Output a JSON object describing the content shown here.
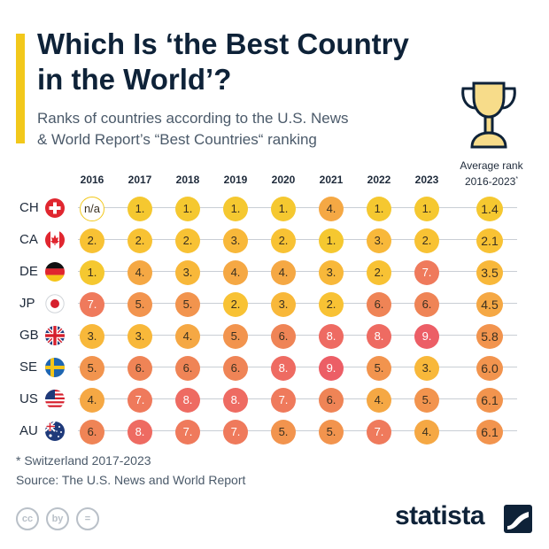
{
  "title_line1": "Which Is ‘the Best Country",
  "title_line2": "in the World’?",
  "subtitle_line1": "Ranks of countries according to the U.S. News",
  "subtitle_line2": "& World Report’s “Best Countries“ ranking",
  "avg_header_line1": "Average rank",
  "avg_header_line2": "2016-2023",
  "avg_header_mark": "*",
  "footnote": "* Switzerland 2017-2023",
  "source": "Source: The U.S. News and World Report",
  "brand": "statista",
  "cc_icons": [
    "cc",
    "by",
    "="
  ],
  "colors": {
    "accent": "#f2c81b",
    "rank_1": "#f5c830",
    "rank_2": "#f8c234",
    "rank_3": "#f8b83a",
    "rank_4": "#f5a844",
    "rank_5": "#f2944e",
    "rank_6": "#ef8456",
    "rank_7": "#ef7a5c",
    "rank_8": "#ee6b62",
    "rank_9": "#ec5e66",
    "text_dark": "#0e2238"
  },
  "chart_data": {
    "type": "table",
    "title": "Which Is ‘the Best Country in the World’?",
    "subtitle": "Ranks of countries according to the U.S. News & World Report’s “Best Countries“ ranking",
    "columns": [
      "2016",
      "2017",
      "2018",
      "2019",
      "2020",
      "2021",
      "2022",
      "2023"
    ],
    "rows": [
      {
        "code": "CH",
        "flag": "switzerland",
        "ranks": [
          "n/a",
          "1.",
          "1.",
          "1.",
          "1.",
          "4.",
          "1.",
          "1."
        ],
        "values": [
          null,
          1,
          1,
          1,
          1,
          4,
          1,
          1
        ],
        "average": "1.4"
      },
      {
        "code": "CA",
        "flag": "canada",
        "ranks": [
          "2.",
          "2.",
          "2.",
          "3.",
          "2.",
          "1.",
          "3.",
          "2."
        ],
        "values": [
          2,
          2,
          2,
          3,
          2,
          1,
          3,
          2
        ],
        "average": "2.1"
      },
      {
        "code": "DE",
        "flag": "germany",
        "ranks": [
          "1.",
          "4.",
          "3.",
          "4.",
          "4.",
          "3.",
          "2.",
          "7."
        ],
        "values": [
          1,
          4,
          3,
          4,
          4,
          3,
          2,
          7
        ],
        "average": "3.5"
      },
      {
        "code": "JP",
        "flag": "japan",
        "ranks": [
          "7.",
          "5.",
          "5.",
          "2.",
          "3.",
          "2.",
          "6.",
          "6."
        ],
        "values": [
          7,
          5,
          5,
          2,
          3,
          2,
          6,
          6
        ],
        "average": "4.5"
      },
      {
        "code": "GB",
        "flag": "united-kingdom",
        "ranks": [
          "3.",
          "3.",
          "4.",
          "5.",
          "6.",
          "8.",
          "8.",
          "9."
        ],
        "values": [
          3,
          3,
          4,
          5,
          6,
          8,
          8,
          9
        ],
        "average": "5.8"
      },
      {
        "code": "SE",
        "flag": "sweden",
        "ranks": [
          "5.",
          "6.",
          "6.",
          "6.",
          "8.",
          "9.",
          "5.",
          "3."
        ],
        "values": [
          5,
          6,
          6,
          6,
          8,
          9,
          5,
          3
        ],
        "average": "6.0"
      },
      {
        "code": "US",
        "flag": "united-states",
        "ranks": [
          "4.",
          "7.",
          "8.",
          "8.",
          "7.",
          "6.",
          "4.",
          "5."
        ],
        "values": [
          4,
          7,
          8,
          8,
          7,
          6,
          4,
          5
        ],
        "average": "6.1"
      },
      {
        "code": "AU",
        "flag": "australia",
        "ranks": [
          "6.",
          "8.",
          "7.",
          "7.",
          "5.",
          "5.",
          "7.",
          "4."
        ],
        "values": [
          6,
          8,
          7,
          7,
          5,
          5,
          7,
          4
        ],
        "average": "6.1"
      }
    ],
    "average_values": [
      1.4,
      2.1,
      3.5,
      4.5,
      5.8,
      6.0,
      6.1,
      6.1
    ]
  }
}
